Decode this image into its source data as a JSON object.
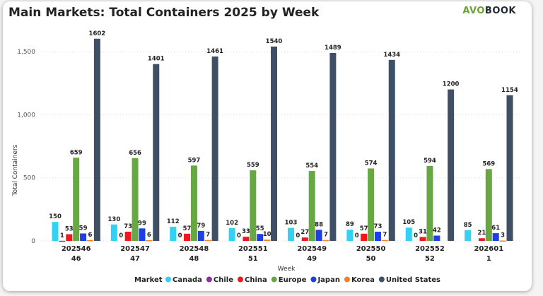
{
  "logo_text": "AVOBOOK",
  "chart_data": {
    "type": "bar",
    "title": "Main Markets: Total Containers 2025 by Week",
    "xlabel": "Week",
    "ylabel": "Total Containers",
    "ylim": [
      0,
      1650
    ],
    "yticks": [
      0,
      500,
      1000,
      1500
    ],
    "ytick_labels": [
      "0",
      "500",
      "1,000",
      "1,500"
    ],
    "grid": true,
    "legend_title": "Market",
    "legend_position": "bottom",
    "categories": [
      "202546",
      "202547",
      "202548",
      "202551",
      "202549",
      "202550",
      "202552",
      "202601"
    ],
    "category_sublabels": [
      "46",
      "47",
      "48",
      "51",
      "49",
      "50",
      "52",
      "1"
    ],
    "series": [
      {
        "name": "Canada",
        "color": "#33d1f5",
        "values": [
          150,
          130,
          112,
          102,
          103,
          89,
          105,
          85
        ]
      },
      {
        "name": "Chile",
        "color": "#8b2fa0",
        "values": [
          1,
          0,
          0,
          0,
          0,
          0,
          0,
          null
        ]
      },
      {
        "name": "China",
        "color": "#f0181b",
        "values": [
          53,
          73,
          57,
          33,
          27,
          57,
          31,
          21
        ]
      },
      {
        "name": "Europe",
        "color": "#67a843",
        "values": [
          659,
          656,
          597,
          559,
          554,
          574,
          594,
          569
        ]
      },
      {
        "name": "Japan",
        "color": "#1e3fe8",
        "values": [
          59,
          99,
          79,
          55,
          88,
          73,
          42,
          61
        ]
      },
      {
        "name": "Korea",
        "color": "#f57f25",
        "values": [
          6,
          6,
          7,
          10,
          7,
          7,
          null,
          3
        ]
      },
      {
        "name": "United States",
        "color": "#3f5066",
        "values": [
          1602,
          1401,
          1461,
          1540,
          1489,
          1434,
          1200,
          1154
        ]
      }
    ]
  }
}
